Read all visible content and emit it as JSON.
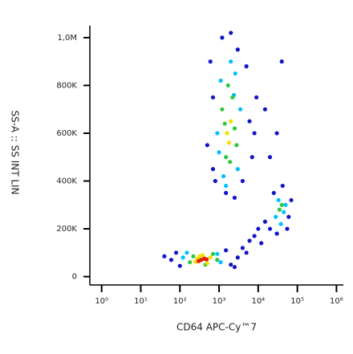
{
  "chart_data": {
    "type": "scatter",
    "x_label": "CD64 APC-Cy™7",
    "y_label": "SS-A :: SS INT LIN",
    "x_scale": "log",
    "xlim": [
      0.5,
      1500000
    ],
    "xticks": [
      {
        "value": 1,
        "label": "10⁰"
      },
      {
        "value": 10,
        "label": "10¹"
      },
      {
        "value": 100,
        "label": "10²"
      },
      {
        "value": 1000,
        "label": "10³"
      },
      {
        "value": 10000,
        "label": "10⁴"
      },
      {
        "value": 100000,
        "label": "10⁵"
      },
      {
        "value": 1000000,
        "label": "10⁶"
      }
    ],
    "ylim": [
      -35000,
      1050000
    ],
    "yticks": [
      0,
      {
        "value": 200000,
        "label": "200K"
      },
      {
        "value": 400000,
        "label": "400K"
      },
      {
        "value": 600000,
        "label": "600K"
      },
      {
        "value": 800000,
        "label": "800K"
      },
      {
        "value": 1000000,
        "label": "1,0M"
      }
    ],
    "series": [
      {
        "color": "#1414c8",
        "x": [
          60,
          2000,
          80,
          1500,
          100,
          3000,
          40,
          2500,
          500,
          6000,
          700,
          8000,
          600,
          5000,
          1200,
          7000,
          800,
          4000,
          1500,
          9000,
          2000,
          3000,
          700,
          2500,
          4000,
          6000,
          10000,
          8000,
          15000,
          12000,
          5000,
          20000,
          60000,
          25000,
          70000,
          30000,
          55000,
          42000,
          20000,
          30000,
          40000,
          15000
        ],
        "y": [
          70000,
          50000,
          100000,
          110000,
          45000,
          80000,
          85000,
          40000,
          550000,
          650000,
          750000,
          600000,
          900000,
          880000,
          1000000,
          500000,
          400000,
          400000,
          350000,
          750000,
          1020000,
          950000,
          450000,
          330000,
          120000,
          150000,
          200000,
          170000,
          230000,
          140000,
          100000,
          200000,
          250000,
          350000,
          320000,
          180000,
          200000,
          380000,
          500000,
          600000,
          900000,
          700000
        ]
      },
      {
        "color": "#00c0ff",
        "x": [
          120,
          1100,
          150,
          900,
          900,
          3500,
          1100,
          3000,
          1300,
          2600,
          1000,
          2000,
          1500,
          2400,
          28000,
          45000,
          33000,
          50000,
          38000
        ],
        "y": [
          80000,
          60000,
          100000,
          95000,
          600000,
          700000,
          820000,
          450000,
          420000,
          850000,
          520000,
          900000,
          380000,
          760000,
          250000,
          270000,
          320000,
          300000,
          220000
        ]
      },
      {
        "color": "#30c840",
        "x": [
          180,
          900,
          700,
          220,
          450,
          1200,
          2500,
          1500,
          2200,
          1900,
          1400,
          1700,
          2800,
          35000,
          40000
        ],
        "y": [
          60000,
          70000,
          95000,
          85000,
          50000,
          700000,
          620000,
          500000,
          750000,
          480000,
          640000,
          800000,
          550000,
          280000,
          300000
        ]
      },
      {
        "color": "#f0e000",
        "x": [
          250,
          600,
          380,
          500,
          320,
          280,
          1600,
          2000,
          1800
        ],
        "y": [
          62000,
          80000,
          90000,
          55000,
          85000,
          75000,
          600000,
          650000,
          560000
        ]
      },
      {
        "color": "#e02000",
        "x": [
          350,
          420,
          300,
          480
        ],
        "y": [
          70000,
          75000,
          65000,
          72000
        ]
      }
    ]
  }
}
